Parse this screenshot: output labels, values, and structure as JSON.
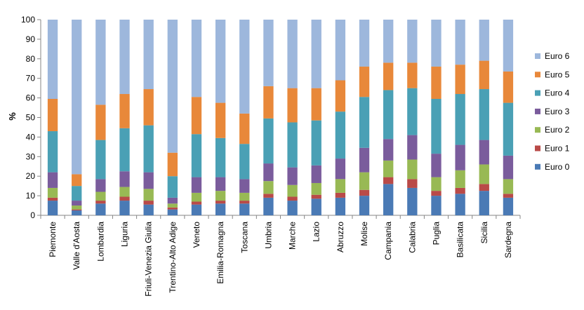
{
  "chart_data": {
    "type": "bar",
    "stacked": true,
    "ylabel": "%",
    "xlabel": "",
    "ylim": [
      0,
      100
    ],
    "yticks": [
      0,
      10,
      20,
      30,
      40,
      50,
      60,
      70,
      80,
      90,
      100
    ],
    "grid": false,
    "legend_position": "right",
    "categories": [
      "Piemonte",
      "Valle d'Aosta",
      "Lombardia",
      "Liguria",
      "Friuli-Venezia Giulia",
      "Trentino-Alto Adige",
      "Veneto",
      "Emilia-Romagna",
      "Toscana",
      "Umbria",
      "Marche",
      "Lazio",
      "Abruzzo",
      "Molise",
      "Campania",
      "Calabria",
      "Puglia",
      "Basilicata",
      "Sicilia",
      "Sardegna"
    ],
    "series": [
      {
        "name": "Euro 0",
        "color": "#4a7ab5",
        "values": [
          7.5,
          2.5,
          6,
          7.5,
          5.5,
          3,
          5.5,
          6,
          6,
          9,
          7.5,
          8.5,
          9,
          10,
          16,
          14,
          10,
          11,
          12.5,
          9
        ]
      },
      {
        "name": "Euro 1",
        "color": "#b94a48",
        "values": [
          1.5,
          0.5,
          1.5,
          2,
          2,
          1,
          1.5,
          1.5,
          1.5,
          2,
          2,
          2,
          2.5,
          3,
          3.5,
          4.5,
          2.5,
          3,
          3.5,
          2
        ]
      },
      {
        "name": "Euro 2",
        "color": "#98b954",
        "values": [
          5,
          2,
          4.5,
          5,
          6,
          2,
          4.5,
          5,
          4,
          6.5,
          6,
          6,
          7,
          9,
          8.5,
          10,
          7,
          9,
          10,
          7.5
        ]
      },
      {
        "name": "Euro 3",
        "color": "#7a5c9c",
        "values": [
          8,
          2.5,
          6.5,
          8,
          8.5,
          3,
          8,
          7,
          7,
          9,
          9,
          9,
          10.5,
          12.5,
          11,
          12.5,
          12,
          13,
          12.5,
          12
        ]
      },
      {
        "name": "Euro 4",
        "color": "#4aa0b5",
        "values": [
          21,
          7.5,
          20,
          22,
          24,
          11,
          22,
          20,
          18,
          23,
          23,
          23,
          24,
          26,
          25,
          24,
          28,
          26,
          26,
          27
        ]
      },
      {
        "name": "Euro 5",
        "color": "#e8883a",
        "values": [
          16.5,
          6,
          18,
          17.5,
          18.5,
          12,
          19,
          18,
          15.5,
          16.5,
          17.5,
          16.5,
          16,
          15.5,
          14,
          13,
          16.5,
          15,
          14.5,
          16
        ]
      },
      {
        "name": "Euro 6",
        "color": "#9db7dc",
        "values": [
          40.5,
          79,
          43.5,
          38,
          35.5,
          68,
          39.5,
          42.5,
          48,
          34,
          35,
          35,
          31,
          24,
          22,
          22,
          24,
          23,
          21,
          26.5
        ]
      }
    ]
  }
}
